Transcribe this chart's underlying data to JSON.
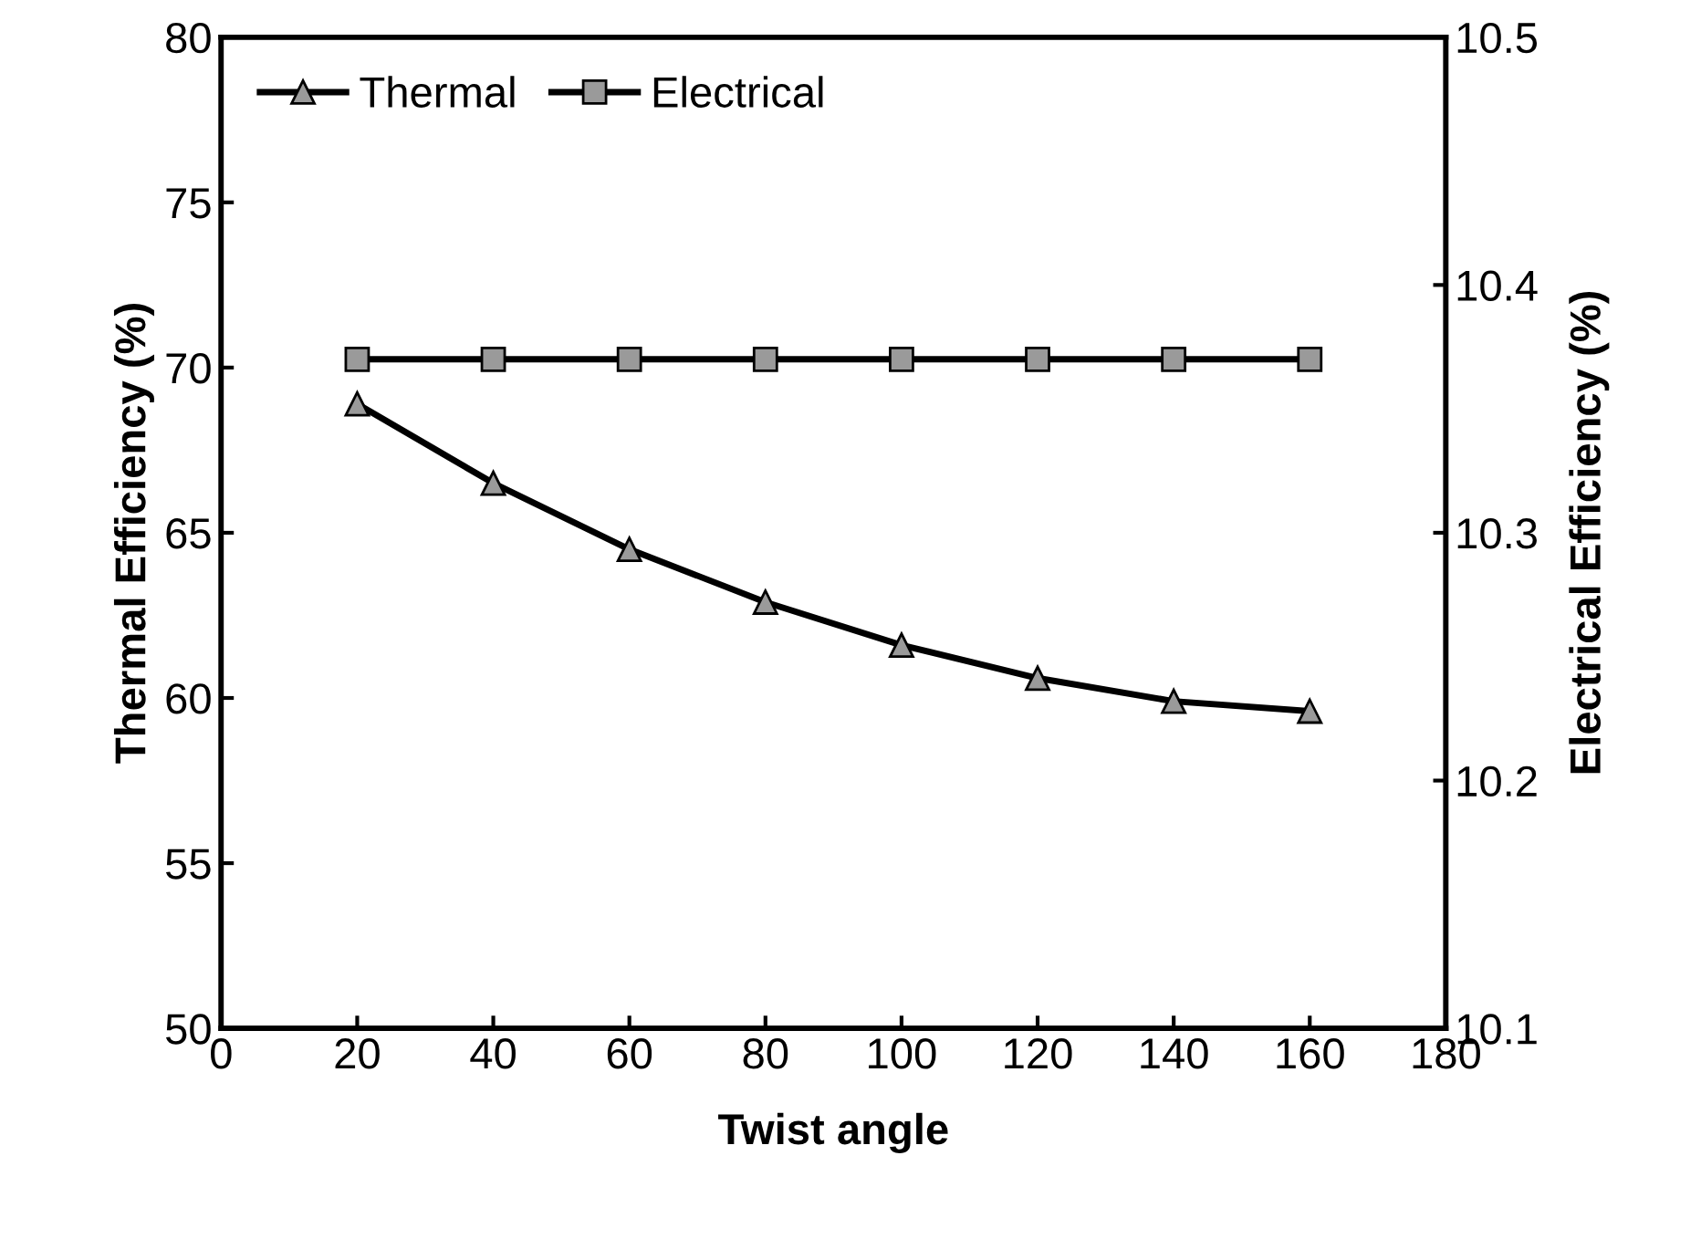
{
  "chart_data": {
    "type": "line",
    "xlabel": "Twist angle",
    "ylabel": "Thermal Efficiency (%)",
    "y2label": "Electrical Efficiency (%)",
    "x": [
      20,
      40,
      60,
      80,
      100,
      120,
      140,
      160
    ],
    "series": [
      {
        "name": "Thermal",
        "color": "#000000",
        "marker": "triangle",
        "values": [
          68.9,
          66.5,
          64.5,
          62.9,
          61.6,
          60.6,
          59.9,
          59.6
        ]
      },
      {
        "name": "Electrical",
        "color": "#000000",
        "marker": "square",
        "axis": "y2",
        "values": [
          10.37,
          10.37,
          10.37,
          10.37,
          10.37,
          10.37,
          10.37,
          10.37
        ]
      }
    ],
    "xlim": [
      0,
      180
    ],
    "xticks": [
      0,
      20,
      40,
      60,
      80,
      100,
      120,
      140,
      160,
      180
    ],
    "ylim": [
      50,
      80
    ],
    "yticks": [
      50,
      55,
      60,
      65,
      70,
      75,
      80
    ],
    "y2lim": [
      10.1,
      10.5
    ],
    "y2ticks": [
      10.1,
      10.2,
      10.3,
      10.4,
      10.5
    ],
    "grid": false,
    "legend": "top left",
    "line_style": "solid"
  }
}
